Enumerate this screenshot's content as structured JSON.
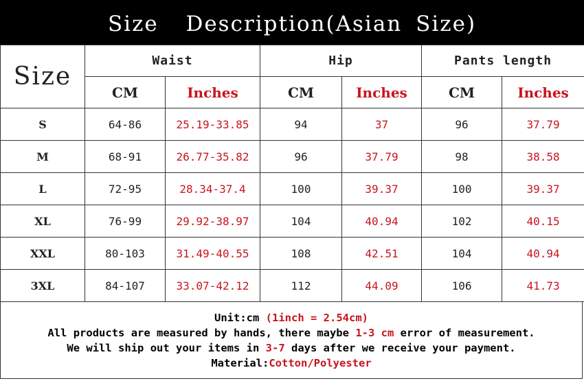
{
  "title": "Size  Description(Asian Size)",
  "header": {
    "size": "Size",
    "groups": [
      "Waist",
      "Hip",
      "Pants length"
    ],
    "cm": "CM",
    "inches": "Inches"
  },
  "rows": [
    {
      "size": "S",
      "waist_cm": "64-86",
      "waist_in": "25.19-33.85",
      "hip_cm": "94",
      "hip_in": "37",
      "len_cm": "96",
      "len_in": "37.79"
    },
    {
      "size": "M",
      "waist_cm": "68-91",
      "waist_in": "26.77-35.82",
      "hip_cm": "96",
      "hip_in": "37.79",
      "len_cm": "98",
      "len_in": "38.58"
    },
    {
      "size": "L",
      "waist_cm": "72-95",
      "waist_in": "28.34-37.4",
      "hip_cm": "100",
      "hip_in": "39.37",
      "len_cm": "100",
      "len_in": "39.37"
    },
    {
      "size": "XL",
      "waist_cm": "76-99",
      "waist_in": "29.92-38.97",
      "hip_cm": "104",
      "hip_in": "40.94",
      "len_cm": "102",
      "len_in": "40.15"
    },
    {
      "size": "XXL",
      "waist_cm": "80-103",
      "waist_in": "31.49-40.55",
      "hip_cm": "108",
      "hip_in": "42.51",
      "len_cm": "104",
      "len_in": "40.94"
    },
    {
      "size": "3XL",
      "waist_cm": "84-107",
      "waist_in": "33.07-42.12",
      "hip_cm": "112",
      "hip_in": "44.09",
      "len_cm": "106",
      "len_in": "41.73"
    }
  ],
  "footer": {
    "unit": "Unit:cm ",
    "unit_conv": "(1inch = 2.54cm)",
    "measure_pre": "All products are measured by hands, there maybe ",
    "measure_hl": "1-3 cm",
    "measure_post": " error of measurement.",
    "ship_pre": "We will ship out your items in ",
    "ship_hl": "3-7",
    "ship_post": " days after we receive your payment.",
    "material_label": "Material:",
    "material_value": "Cotton/Polyester"
  },
  "colors": {
    "highlight": "#c8141e",
    "title_bg": "#000000"
  }
}
